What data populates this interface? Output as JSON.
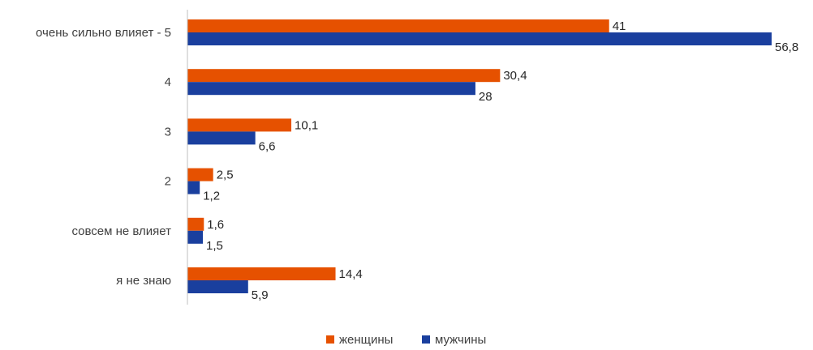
{
  "chart_data": {
    "type": "bar",
    "orientation": "horizontal",
    "categories": [
      "очень сильно влияет - 5",
      "4",
      "3",
      "2",
      "совсем не влияет",
      "я не знаю"
    ],
    "series": [
      {
        "name": "женщины",
        "color": "#E65100",
        "values": [
          41,
          30.4,
          10.1,
          2.5,
          1.6,
          14.4
        ],
        "labels": [
          "41",
          "30,4",
          "10,1",
          "2,5",
          "1,6",
          "14,4"
        ]
      },
      {
        "name": "мужчины",
        "color": "#1A3F9E",
        "values": [
          56.8,
          28,
          6.6,
          1.2,
          1.5,
          5.9
        ],
        "labels": [
          "56,8",
          "28",
          "6,6",
          "1,2",
          "1,5",
          "5,9"
        ]
      }
    ],
    "xlim": [
      0,
      56.8
    ],
    "grid": false,
    "legend_position": "bottom",
    "axis_color": "#BFBFBF"
  }
}
